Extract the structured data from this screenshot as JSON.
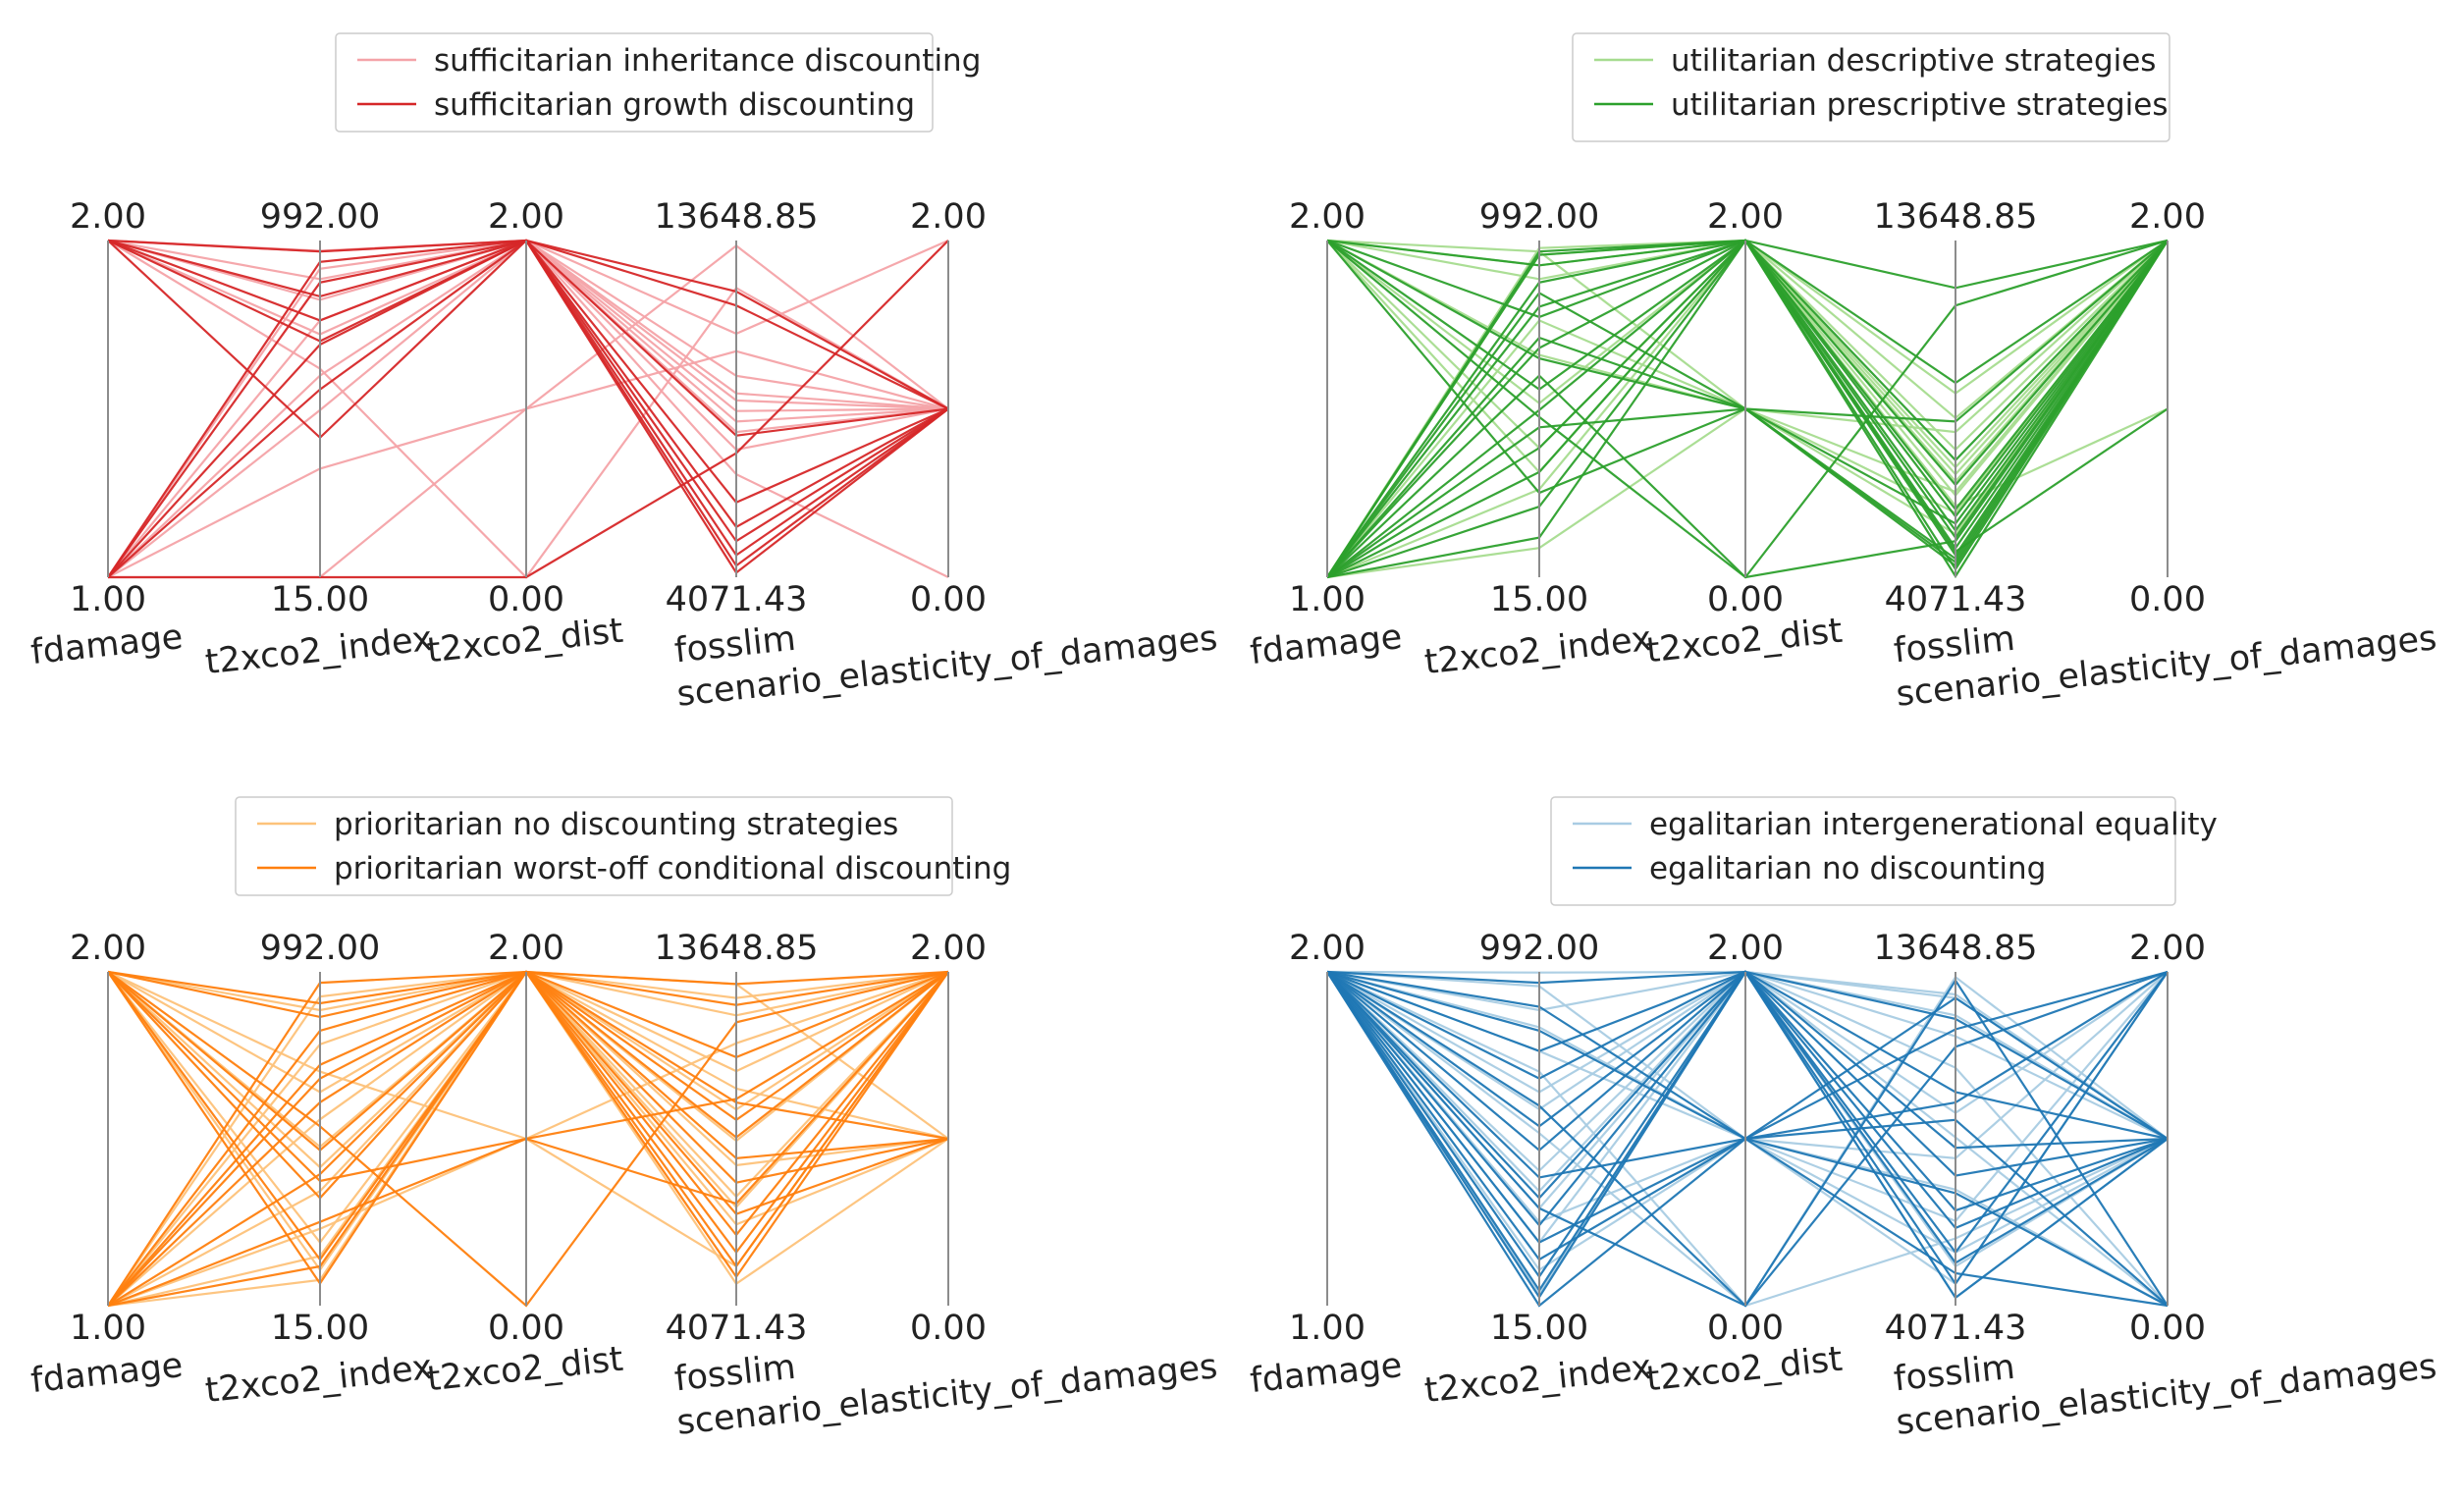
{
  "chart_data": [
    {
      "type": "parallel-coordinates",
      "axes": [
        {
          "name": "fdamage",
          "min": "1.00",
          "max": "2.00",
          "lo": 1,
          "hi": 2
        },
        {
          "name": "t2xco2_index",
          "min": "15.00",
          "max": "992.00",
          "lo": 15,
          "hi": 992
        },
        {
          "name": "t2xco2_dist",
          "min": "0.00",
          "max": "2.00",
          "lo": 0,
          "hi": 2
        },
        {
          "name": "fosslim",
          "min": "4071.43",
          "max": "13648.85",
          "lo": 4071.43,
          "hi": 13648.85
        },
        {
          "name": "scenario_elasticity_of_damages",
          "min": "0.00",
          "max": "2.00",
          "lo": 0,
          "hi": 2
        }
      ],
      "legend_placement": "top-center",
      "series": [
        {
          "name": "sufficitarian inheritance discounting",
          "color": "#f4a3a8",
          "lines": [
            [
              2,
              962,
              2,
              11000,
              2
            ],
            [
              2,
              620,
              0,
              12300,
              1
            ],
            [
              1,
              15,
              1,
              13500,
              1
            ],
            [
              1,
              330,
              1,
              10500,
              1
            ],
            [
              1,
              910,
              2,
              8500,
              1
            ],
            [
              2,
              720,
              2,
              9800,
              1
            ],
            [
              1,
              500,
              2,
              9300,
              1
            ],
            [
              2,
              880,
              2,
              9100,
              1
            ],
            [
              2,
              820,
              2,
              8800,
              1
            ],
            [
              1,
              760,
              2,
              7700,
              1
            ],
            [
              2,
              960,
              2,
              8200,
              1
            ],
            [
              1,
              600,
              2,
              7000,
              0
            ]
          ]
        },
        {
          "name": "sufficitarian growth discounting",
          "color": "#d62728",
          "lines": [
            [
              2,
              420,
              2,
              12200,
              1
            ],
            [
              2,
              760,
              2,
              4700,
              1
            ],
            [
              1,
              870,
              2,
              5100,
              1
            ],
            [
              1,
              690,
              2,
              4400,
              1
            ],
            [
              2,
              830,
              2,
              8100,
              1
            ],
            [
              1,
              930,
              2,
              11800,
              1
            ],
            [
              2,
              960,
              2,
              4200,
              1
            ],
            [
              1,
              15,
              0,
              7600,
              2
            ],
            [
              1,
              560,
              2,
              5500,
              1
            ],
            [
              2,
              700,
              2,
              6200,
              1
            ]
          ]
        }
      ]
    },
    {
      "type": "parallel-coordinates",
      "axes": [
        {
          "name": "fdamage",
          "min": "1.00",
          "max": "2.00",
          "lo": 1,
          "hi": 2
        },
        {
          "name": "t2xco2_index",
          "min": "15.00",
          "max": "992.00",
          "lo": 15,
          "hi": 992
        },
        {
          "name": "t2xco2_dist",
          "min": "0.00",
          "max": "2.00",
          "lo": 0,
          "hi": 2
        },
        {
          "name": "fosslim",
          "min": "4071.43",
          "max": "13648.85",
          "lo": 4071.43,
          "hi": 13648.85
        },
        {
          "name": "scenario_elasticity_of_damages",
          "min": "0.00",
          "max": "2.00",
          "lo": 0,
          "hi": 2
        }
      ],
      "legend_placement": "top-center",
      "series": [
        {
          "name": "utilitarian descriptive strategies",
          "color": "#a6dc8f",
          "lines": [
            [
              2,
              920,
              2,
              7200,
              2
            ],
            [
              2,
              960,
              1,
              8200,
              2
            ],
            [
              1,
              950,
              2,
              6800,
              2
            ],
            [
              2,
              320,
              2,
              9300,
              2
            ],
            [
              1,
              100,
              1,
              6500,
              2
            ],
            [
              2,
              880,
              2,
              6100,
              1
            ],
            [
              1,
              270,
              2,
              7700,
              2
            ],
            [
              2,
              660,
              1,
              5300,
              2
            ],
            [
              1,
              970,
              2,
              6400,
              2
            ],
            [
              2,
              390,
              2,
              8600,
              2
            ],
            [
              1,
              760,
              1,
              5900,
              2
            ],
            [
              2,
              520,
              2,
              7000,
              2
            ]
          ]
        },
        {
          "name": "utilitarian prescriptive strategies",
          "color": "#2ca02c",
          "lines": [
            [
              1,
              220,
              2,
              5200,
              2
            ],
            [
              1,
              450,
              1,
              5600,
              2
            ],
            [
              2,
              770,
              2,
              4300,
              2
            ],
            [
              1,
              870,
              2,
              4800,
              1
            ],
            [
              2,
              650,
              1,
              4600,
              2
            ],
            [
              1,
              950,
              2,
              4100,
              2
            ],
            [
              1,
              320,
              2,
              9600,
              2
            ],
            [
              2,
              560,
              2,
              6000,
              2
            ],
            [
              1,
              710,
              1,
              4500,
              2
            ],
            [
              1,
              130,
              2,
              7400,
              2
            ],
            [
              2,
              480,
              0,
              11800,
              2
            ],
            [
              1,
              800,
              2,
              4900,
              2
            ],
            [
              1,
              390,
              2,
              12300,
              2
            ],
            [
              1,
              600,
              0,
              5100,
              2
            ],
            [
              2,
              920,
              2,
              6700,
              2
            ],
            [
              1,
              500,
              2,
              4700,
              2
            ],
            [
              1,
              840,
              1,
              8500,
              2
            ],
            [
              2,
              260,
              1,
              4400,
              2
            ],
            [
              1,
              960,
              2,
              5400,
              2
            ],
            [
              1,
              680,
              2,
              5800,
              2
            ]
          ]
        }
      ]
    },
    {
      "type": "parallel-coordinates",
      "axes": [
        {
          "name": "fdamage",
          "min": "1.00",
          "max": "2.00",
          "lo": 1,
          "hi": 2
        },
        {
          "name": "t2xco2_index",
          "min": "15.00",
          "max": "992.00",
          "lo": 15,
          "hi": 992
        },
        {
          "name": "t2xco2_dist",
          "min": "0.00",
          "max": "2.00",
          "lo": 0,
          "hi": 2
        },
        {
          "name": "fosslim",
          "min": "4071.43",
          "max": "13648.85",
          "lo": 4071.43,
          "hi": 13648.85
        },
        {
          "name": "scenario_elasticity_of_damages",
          "min": "0.00",
          "max": "2.00",
          "lo": 0,
          "hi": 2
        }
      ],
      "legend_placement": "top-center",
      "series": [
        {
          "name": "prioritarian no discounting strategies",
          "color": "#fdc27a",
          "lines": [
            [
              2,
              120,
              2,
              12400,
              2
            ],
            [
              1,
              780,
              2,
              10300,
              1
            ],
            [
              2,
              480,
              2,
              8800,
              2
            ],
            [
              1,
              240,
              1,
              11600,
              2
            ],
            [
              2,
              640,
              2,
              6400,
              1
            ],
            [
              1,
              90,
              2,
              9700,
              2
            ],
            [
              2,
              880,
              2,
              13300,
              1
            ],
            [
              1,
              350,
              2,
              7200,
              2
            ],
            [
              2,
              700,
              1,
              5200,
              2
            ],
            [
              1,
              560,
              2,
              12900,
              2
            ],
            [
              2,
              200,
              2,
              8100,
              1
            ],
            [
              1,
              920,
              2,
              6900,
              2
            ],
            [
              2,
              420,
              2,
              10800,
              2
            ],
            [
              1,
              160,
              2,
              4700,
              1
            ]
          ]
        },
        {
          "name": "prioritarian worst-off conditional discounting",
          "color": "#ff7f0e",
          "lines": [
            [
              2,
              860,
              2,
              9400,
              2
            ],
            [
              1,
              610,
              2,
              7600,
              1
            ],
            [
              2,
              330,
              2,
              11200,
              2
            ],
            [
              1,
              960,
              2,
              6100,
              2
            ],
            [
              2,
              540,
              0,
              12200,
              2
            ],
            [
              1,
              400,
              2,
              5200,
              2
            ],
            [
              2,
              150,
              2,
              8300,
              1
            ],
            [
              1,
              720,
              2,
              13300,
              2
            ],
            [
              2,
              900,
              2,
              4900,
              2
            ],
            [
              1,
              260,
              1,
              10000,
              2
            ],
            [
              2,
              470,
              2,
              6700,
              1
            ],
            [
              1,
              820,
              2,
              8900,
              2
            ],
            [
              2,
              80,
              2,
              12700,
              2
            ],
            [
              1,
              680,
              2,
              5600,
              2
            ],
            [
              2,
              380,
              1,
              7000,
              2
            ],
            [
              1,
              130,
              2,
              9900,
              1
            ]
          ]
        }
      ]
    },
    {
      "type": "parallel-coordinates",
      "axes": [
        {
          "name": "fdamage",
          "min": "1.00",
          "max": "2.00",
          "lo": 1,
          "hi": 2
        },
        {
          "name": "t2xco2_index",
          "min": "15.00",
          "max": "992.00",
          "lo": 15,
          "hi": 992
        },
        {
          "name": "t2xco2_dist",
          "min": "0.00",
          "max": "2.00",
          "lo": 0,
          "hi": 2
        },
        {
          "name": "fosslim",
          "min": "4071.43",
          "max": "13648.85",
          "lo": 4071.43,
          "hi": 13648.85
        },
        {
          "name": "scenario_elasticity_of_damages",
          "min": "0.00",
          "max": "2.00",
          "lo": 0,
          "hi": 2
        }
      ],
      "legend_placement": "top-center",
      "series": [
        {
          "name": "egalitarian intergenerational equality",
          "color": "#a9cce3",
          "lines": [
            [
              2,
              990,
              2,
              12400,
              1
            ],
            [
              2,
              760,
              1,
              6500,
              2
            ],
            [
              2,
              520,
              0,
              13500,
              1
            ],
            [
              2,
              300,
              2,
              5200,
              1
            ],
            [
              2,
              880,
              2,
              10900,
              0
            ],
            [
              2,
              120,
              1,
              8300,
              2
            ],
            [
              2,
              640,
              2,
              4300,
              1
            ],
            [
              2,
              410,
              2,
              11800,
              1
            ],
            [
              2,
              950,
              1,
              7400,
              0
            ],
            [
              2,
              200,
              2,
              9600,
              2
            ],
            [
              2,
              700,
              0,
              6000,
              1
            ],
            [
              2,
              50,
              2,
              13000,
              1
            ],
            [
              2,
              830,
              1,
              4700,
              2
            ],
            [
              2,
              350,
              2,
              8900,
              0
            ],
            [
              2,
              590,
              2,
              12900,
              1
            ],
            [
              2,
              260,
              1,
              5600,
              1
            ]
          ]
        },
        {
          "name": "egalitarian no discounting",
          "color": "#1f77b4",
          "lines": [
            [
              2,
              15,
              1,
              12000,
              2
            ],
            [
              2,
              100,
              2,
              7800,
              1
            ],
            [
              2,
              200,
              1,
              5000,
              0
            ],
            [
              2,
              330,
              2,
              10200,
              1
            ],
            [
              2,
              470,
              2,
              4300,
              1
            ],
            [
              2,
              600,
              0,
              11500,
              2
            ],
            [
              2,
              760,
              2,
              6300,
              1
            ],
            [
              2,
              890,
              1,
              9400,
              0
            ],
            [
              2,
              960,
              2,
              5600,
              2
            ],
            [
              2,
              60,
              2,
              8600,
              1
            ],
            [
              2,
              150,
              1,
              12900,
              1
            ],
            [
              2,
              250,
              2,
              4700,
              2
            ],
            [
              2,
              390,
              1,
              7300,
              0
            ],
            [
              2,
              540,
              2,
              12300,
              1
            ],
            [
              2,
              680,
              2,
              5300,
              1
            ],
            [
              2,
              820,
              1,
              9900,
              2
            ],
            [
              2,
              40,
              2,
              6800,
              1
            ],
            [
              2,
              300,
              0,
              13400,
              0
            ]
          ]
        }
      ]
    }
  ]
}
